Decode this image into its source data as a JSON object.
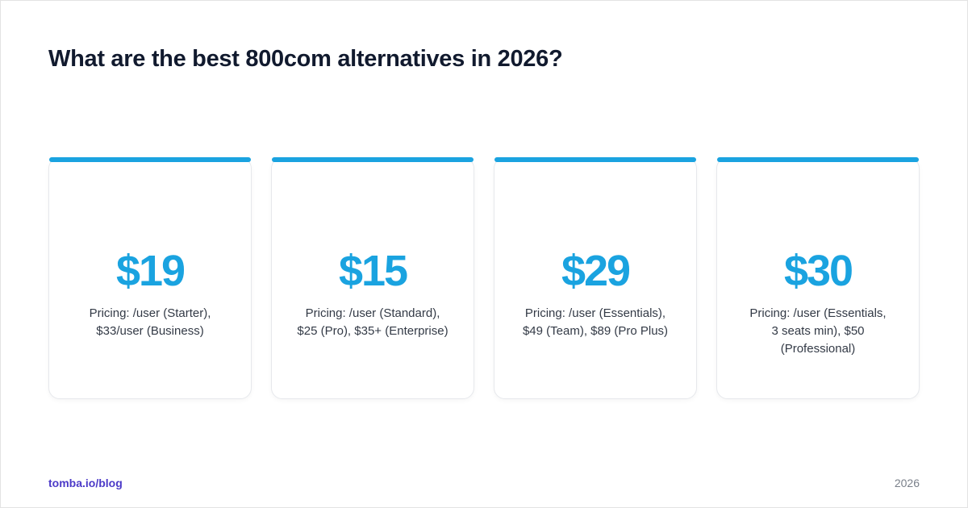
{
  "header": {
    "title": "What are the best 800com alternatives in 2026?"
  },
  "cards": [
    {
      "price": "$19",
      "description": [
        "Pricing: /user (Starter),",
        "$33/user (Business)"
      ]
    },
    {
      "price": "$15",
      "description": [
        "Pricing: /user (Standard),",
        "$25 (Pro), $35+ (Enterprise)"
      ]
    },
    {
      "price": "$29",
      "description": [
        "Pricing: /user (Essentials),",
        "$49 (Team), $89 (Pro Plus)"
      ]
    },
    {
      "price": "$30",
      "description": [
        "Pricing: /user (Essentials,",
        "3 seats min), $50",
        "(Professional)"
      ]
    }
  ],
  "footer": {
    "site": "tomba.io/blog",
    "year": "2026"
  }
}
